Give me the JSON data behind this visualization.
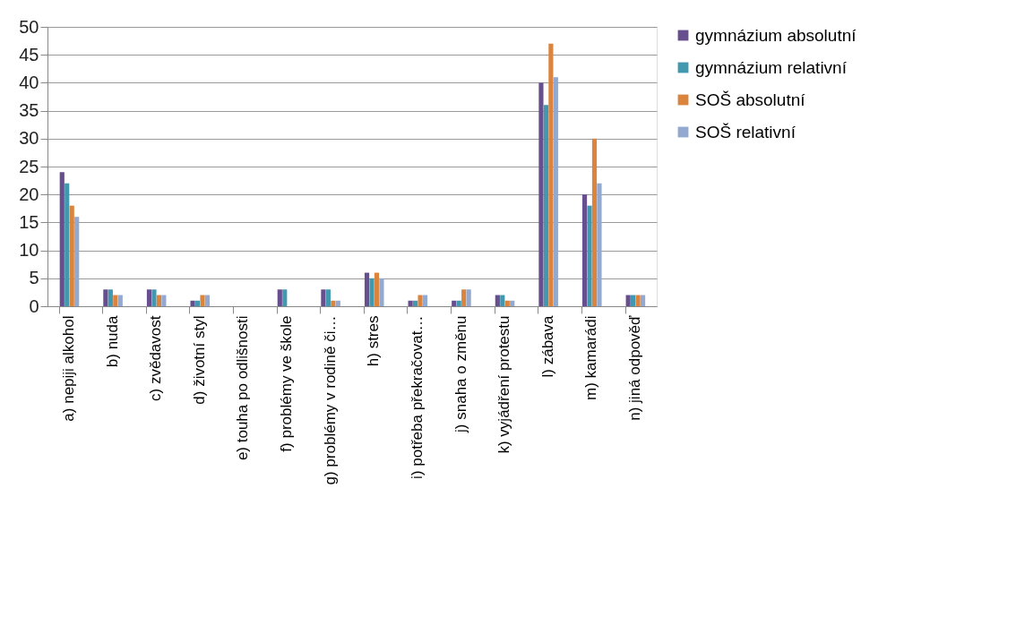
{
  "chart_data": {
    "type": "bar",
    "categories": [
      "a) nepiji alkohol",
      "b) nuda",
      "c) zvědavost",
      "d) životní styl",
      "e) touha po odlišnosti",
      "f) problémy ve škole",
      "g) problémy v rodině či…",
      "h) stres",
      "i) potřeba překračovat…",
      "j) snaha o změnu",
      "k) vyjádření protestu",
      "l) zábava",
      "m) kamarádi",
      "n) jiná odpověď"
    ],
    "series": [
      {
        "name": "gymnázium absolutní",
        "color": "#674f8f",
        "values": [
          24,
          3,
          3,
          1,
          0,
          3,
          3,
          6,
          1,
          1,
          2,
          40,
          20,
          2
        ]
      },
      {
        "name": "gymnázium relativní",
        "color": "#4198af",
        "values": [
          22,
          3,
          3,
          1,
          0,
          3,
          3,
          5,
          1,
          1,
          2,
          36,
          18,
          2
        ]
      },
      {
        "name": "SOŠ absolutní",
        "color": "#db843d",
        "values": [
          18,
          2,
          2,
          2,
          0,
          0,
          1,
          6,
          2,
          3,
          1,
          47,
          30,
          2
        ]
      },
      {
        "name": "SOŠ relativní",
        "color": "#93a9cf",
        "values": [
          16,
          2,
          2,
          2,
          0,
          0,
          1,
          5,
          2,
          3,
          1,
          41,
          22,
          2
        ]
      }
    ],
    "ylim": [
      0,
      50
    ],
    "yticks": [
      0,
      5,
      10,
      15,
      20,
      25,
      30,
      35,
      40,
      45,
      50
    ],
    "grid": "y",
    "legend": "right"
  }
}
